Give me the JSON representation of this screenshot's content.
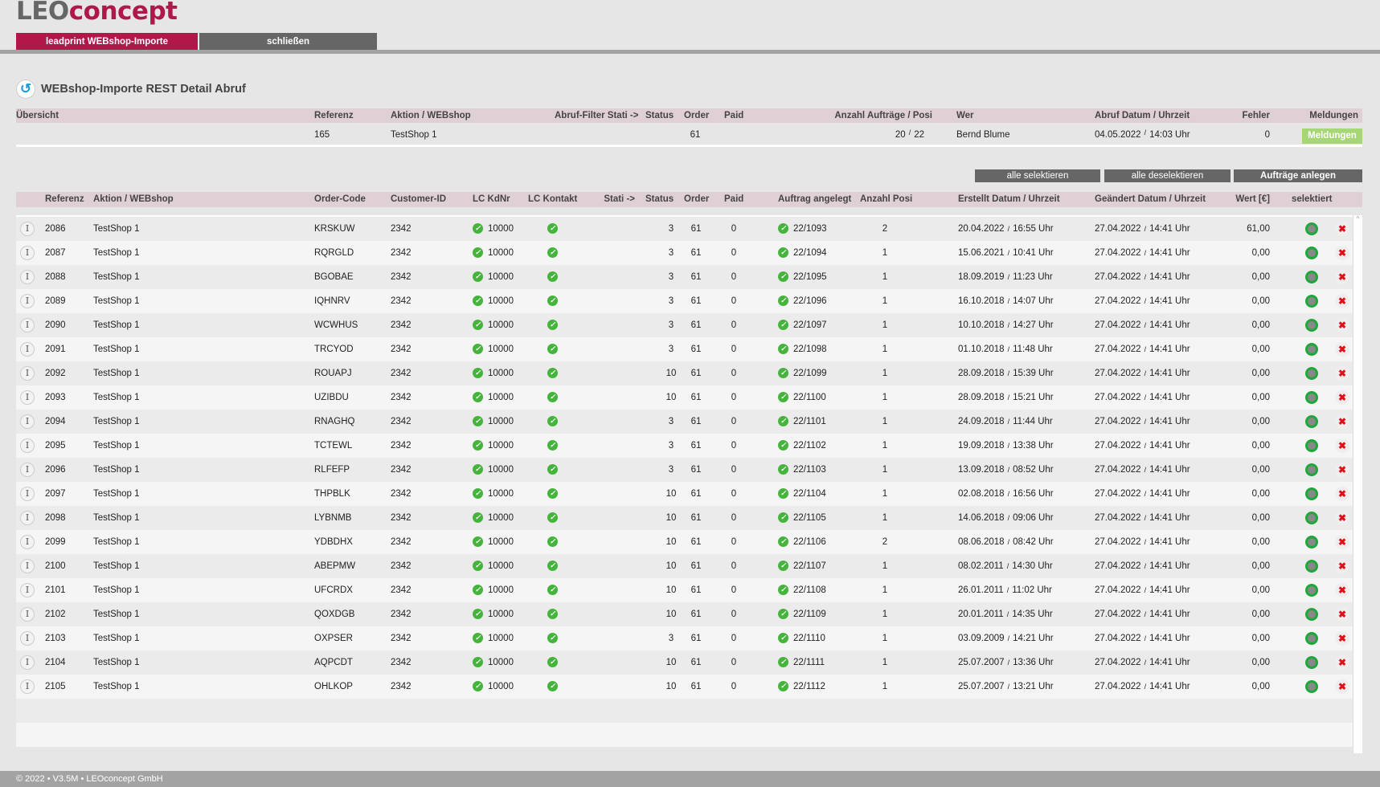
{
  "logo": {
    "part1": "LEO",
    "part2": "concept"
  },
  "tabs": [
    {
      "label": "leadprint WEBshop-Importe",
      "active": true
    },
    {
      "label": "schließen"
    }
  ],
  "page_title": "WEBshop-Importe REST Detail Abruf",
  "summary": {
    "headers": {
      "uebersicht": "Übersicht",
      "referenz": "Referenz",
      "aktion": "Aktion / WEBshop",
      "filter": "Abruf-Filter Stati ->",
      "status": "Status",
      "order": "Order",
      "paid": "Paid",
      "anzahl": "Anzahl Aufträge  /  Posi",
      "wer": "Wer",
      "datum": "Abruf Datum / Uhrzeit",
      "fehler": "Fehler",
      "meldungen": "Meldungen"
    },
    "row": {
      "referenz": "165",
      "aktion": "TestShop 1",
      "order": "61",
      "auftraege": "20",
      "posi": "22",
      "wer": "Bernd Blume",
      "datum": "04.05.2022",
      "zeit": "14:03 Uhr",
      "fehler": "0",
      "meldungen_button": "Meldungen"
    }
  },
  "buttons": {
    "select_all": "alle selektieren",
    "deselect_all": "alle deselektieren",
    "create_orders": "Aufträge anlegen"
  },
  "table": {
    "headers": {
      "referenz": "Referenz",
      "aktion": "Aktion / WEBshop",
      "order_code": "Order-Code",
      "customer_id": "Customer-ID",
      "lc_kdnr": "LC KdNr",
      "lc_kontakt": "LC Kontakt",
      "stati": "Stati ->",
      "status": "Status",
      "order": "Order",
      "paid": "Paid",
      "auftrag": "Auftrag angelegt",
      "anzahl_posi": "Anzahl Posi",
      "erstellt": "Erstellt Datum / Uhrzeit",
      "geaendert": "Geändert Datum / Uhrzeit",
      "wert": "Wert [€]",
      "selektiert": "selektiert"
    },
    "rows": [
      [
        "2086",
        "TestShop 1",
        "KRSKUW",
        "2342",
        "10000",
        "3",
        "61",
        "0",
        "22/1093",
        "2",
        "20.04.2022",
        "16:55 Uhr",
        "27.04.2022",
        "14:41 Uhr",
        "61,00"
      ],
      [
        "2087",
        "TestShop 1",
        "RQRGLD",
        "2342",
        "10000",
        "3",
        "61",
        "0",
        "22/1094",
        "1",
        "15.06.2021",
        "10:41 Uhr",
        "27.04.2022",
        "14:41 Uhr",
        "0,00"
      ],
      [
        "2088",
        "TestShop 1",
        "BGOBAE",
        "2342",
        "10000",
        "3",
        "61",
        "0",
        "22/1095",
        "1",
        "18.09.2019",
        "11:23 Uhr",
        "27.04.2022",
        "14:41 Uhr",
        "0,00"
      ],
      [
        "2089",
        "TestShop 1",
        "IQHNRV",
        "2342",
        "10000",
        "3",
        "61",
        "0",
        "22/1096",
        "1",
        "16.10.2018",
        "14:07 Uhr",
        "27.04.2022",
        "14:41 Uhr",
        "0,00"
      ],
      [
        "2090",
        "TestShop 1",
        "WCWHUS",
        "2342",
        "10000",
        "3",
        "61",
        "0",
        "22/1097",
        "1",
        "10.10.2018",
        "14:27 Uhr",
        "27.04.2022",
        "14:41 Uhr",
        "0,00"
      ],
      [
        "2091",
        "TestShop 1",
        "TRCYOD",
        "2342",
        "10000",
        "3",
        "61",
        "0",
        "22/1098",
        "1",
        "01.10.2018",
        "11:48 Uhr",
        "27.04.2022",
        "14:41 Uhr",
        "0,00"
      ],
      [
        "2092",
        "TestShop 1",
        "ROUAPJ",
        "2342",
        "10000",
        "10",
        "61",
        "0",
        "22/1099",
        "1",
        "28.09.2018",
        "15:39 Uhr",
        "27.04.2022",
        "14:41 Uhr",
        "0,00"
      ],
      [
        "2093",
        "TestShop 1",
        "UZIBDU",
        "2342",
        "10000",
        "10",
        "61",
        "0",
        "22/1100",
        "1",
        "28.09.2018",
        "15:21 Uhr",
        "27.04.2022",
        "14:41 Uhr",
        "0,00"
      ],
      [
        "2094",
        "TestShop 1",
        "RNAGHQ",
        "2342",
        "10000",
        "3",
        "61",
        "0",
        "22/1101",
        "1",
        "24.09.2018",
        "11:44 Uhr",
        "27.04.2022",
        "14:41 Uhr",
        "0,00"
      ],
      [
        "2095",
        "TestShop 1",
        "TCTEWL",
        "2342",
        "10000",
        "3",
        "61",
        "0",
        "22/1102",
        "1",
        "19.09.2018",
        "13:38 Uhr",
        "27.04.2022",
        "14:41 Uhr",
        "0,00"
      ],
      [
        "2096",
        "TestShop 1",
        "RLFEFP",
        "2342",
        "10000",
        "3",
        "61",
        "0",
        "22/1103",
        "1",
        "13.09.2018",
        "08:52 Uhr",
        "27.04.2022",
        "14:41 Uhr",
        "0,00"
      ],
      [
        "2097",
        "TestShop 1",
        "THPBLK",
        "2342",
        "10000",
        "10",
        "61",
        "0",
        "22/1104",
        "1",
        "02.08.2018",
        "16:56 Uhr",
        "27.04.2022",
        "14:41 Uhr",
        "0,00"
      ],
      [
        "2098",
        "TestShop 1",
        "LYBNMB",
        "2342",
        "10000",
        "10",
        "61",
        "0",
        "22/1105",
        "1",
        "14.06.2018",
        "09:06 Uhr",
        "27.04.2022",
        "14:41 Uhr",
        "0,00"
      ],
      [
        "2099",
        "TestShop 1",
        "YDBDHX",
        "2342",
        "10000",
        "10",
        "61",
        "0",
        "22/1106",
        "2",
        "08.06.2018",
        "08:42 Uhr",
        "27.04.2022",
        "14:41 Uhr",
        "0,00"
      ],
      [
        "2100",
        "TestShop 1",
        "ABEPMW",
        "2342",
        "10000",
        "10",
        "61",
        "0",
        "22/1107",
        "1",
        "08.02.2011",
        "14:30 Uhr",
        "27.04.2022",
        "14:41 Uhr",
        "0,00"
      ],
      [
        "2101",
        "TestShop 1",
        "UFCRDX",
        "2342",
        "10000",
        "10",
        "61",
        "0",
        "22/1108",
        "1",
        "26.01.2011",
        "11:02 Uhr",
        "27.04.2022",
        "14:41 Uhr",
        "0,00"
      ],
      [
        "2102",
        "TestShop 1",
        "QOXDGB",
        "2342",
        "10000",
        "10",
        "61",
        "0",
        "22/1109",
        "1",
        "20.01.2011",
        "14:35 Uhr",
        "27.04.2022",
        "14:41 Uhr",
        "0,00"
      ],
      [
        "2103",
        "TestShop 1",
        "OXPSER",
        "2342",
        "10000",
        "3",
        "61",
        "0",
        "22/1110",
        "1",
        "03.09.2009",
        "14:21 Uhr",
        "27.04.2022",
        "14:41 Uhr",
        "0,00"
      ],
      [
        "2104",
        "TestShop 1",
        "AQPCDT",
        "2342",
        "10000",
        "10",
        "61",
        "0",
        "22/1111",
        "1",
        "25.07.2007",
        "13:36 Uhr",
        "27.04.2022",
        "14:41 Uhr",
        "0,00"
      ],
      [
        "2105",
        "TestShop 1",
        "OHLKOP",
        "2342",
        "10000",
        "10",
        "61",
        "0",
        "22/1112",
        "1",
        "25.07.2007",
        "13:21 Uhr",
        "27.04.2022",
        "14:41 Uhr",
        "0,00"
      ]
    ]
  },
  "footer": "© 2022 • V3.5M • LEOconcept GmbH",
  "colors": {
    "brand": "#b0184a",
    "header_bg": "#dfd0d6",
    "ok_green": "#45b43c",
    "meldungen_green": "#a6d676"
  }
}
